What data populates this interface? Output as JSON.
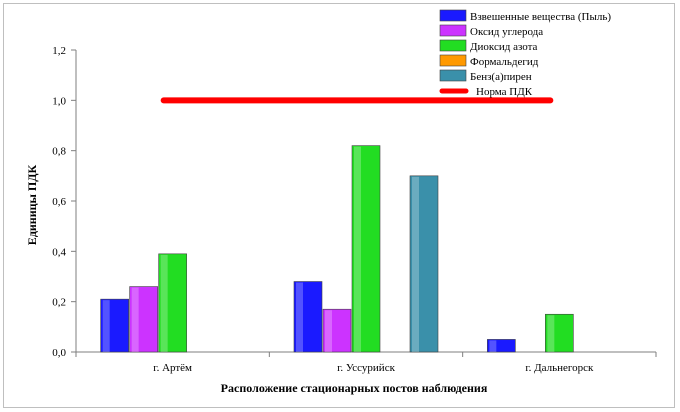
{
  "chart_data": {
    "type": "bar",
    "categories": [
      "г. Артём",
      "г. Уссурийск",
      "г. Дальнегорск"
    ],
    "series": [
      {
        "name": "Взвешенные вещества (Пыль)",
        "color": "#1a1aff",
        "values": [
          0.21,
          0.28,
          0.05
        ]
      },
      {
        "name": "Оксид углерода",
        "color": "#cc33ff",
        "values": [
          0.26,
          0.17,
          null
        ]
      },
      {
        "name": "Диоксид азота",
        "color": "#22dd22",
        "values": [
          0.39,
          0.82,
          0.15
        ]
      },
      {
        "name": "Формальдегид",
        "color": "#ff9900",
        "values": [
          null,
          null,
          null
        ]
      },
      {
        "name": "Бенз(а)пирен",
        "color": "#3a90aa",
        "values": [
          null,
          0.7,
          null
        ]
      }
    ],
    "reference_line": {
      "name": "Норма ПДК",
      "value": 1.0,
      "color": "#ff0000"
    },
    "xlabel": "Расположение стационарных постов наблюдения",
    "ylabel": "Единицы ПДК",
    "ylim": [
      0,
      1.2
    ],
    "yticks": [
      "0,0",
      "0,2",
      "0,4",
      "0,6",
      "0,8",
      "1,0",
      "1,2"
    ],
    "grid": false,
    "legend_position": "top-right"
  }
}
